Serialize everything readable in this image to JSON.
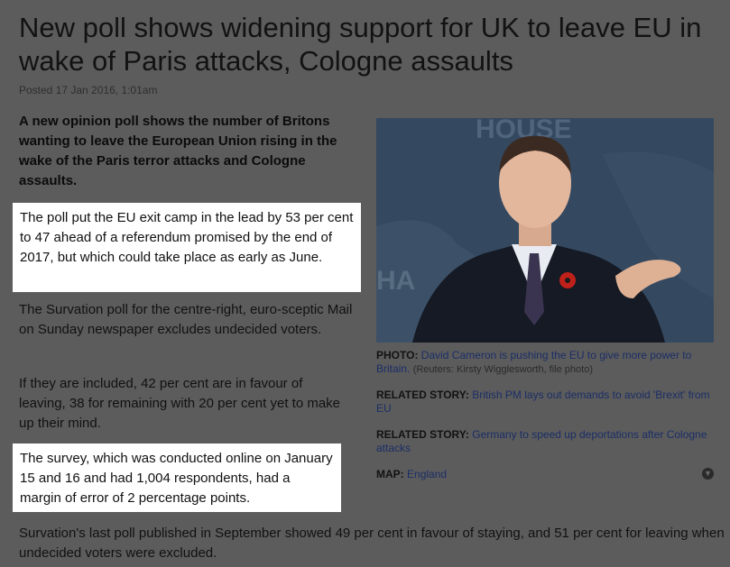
{
  "article": {
    "title": "New poll shows widening support for UK to leave EU in wake of Paris attacks, Cologne assaults",
    "posted": "Posted 17 Jan 2016, 1:01am",
    "lead": "A new opinion poll shows the number of Britons wanting to leave the European Union rising in the wake of the Paris terror attacks and Cologne assaults.",
    "paragraphs": [
      "The poll put the EU exit camp in the lead by 53 per cent to 47 ahead of a referendum promised by the end of 2017, but which could take place as early as June.",
      "The Survation poll for the centre-right, euro-sceptic Mail on Sunday newspaper excludes undecided voters.",
      "If they are included, 42 per cent are in favour of leaving, 38 for remaining with 20 per cent yet to make up their mind.",
      "The survey, which was conducted online on January 15 and 16 and had 1,004 respondents, had a margin of error of 2 percentage points.",
      "Survation's last poll published in September showed 49 per cent in favour of staying, and 51 per cent for leaving when undecided voters were excluded."
    ]
  },
  "sidebar": {
    "photo_label": "PHOTO:",
    "photo_caption": "David Cameron is pushing the EU to give more power to Britain.",
    "photo_credit": "(Reuters: Kirsty Wigglesworth, file photo)",
    "related1_label": "RELATED STORY:",
    "related1_link": "British PM lays out demands to avoid 'Brexit' from EU",
    "related2_label": "RELATED STORY:",
    "related2_link": "Germany to speed up deportations after Cologne attacks",
    "map_label": "MAP:",
    "map_link": "England",
    "photo_backdrop_text": "HOUSE"
  }
}
